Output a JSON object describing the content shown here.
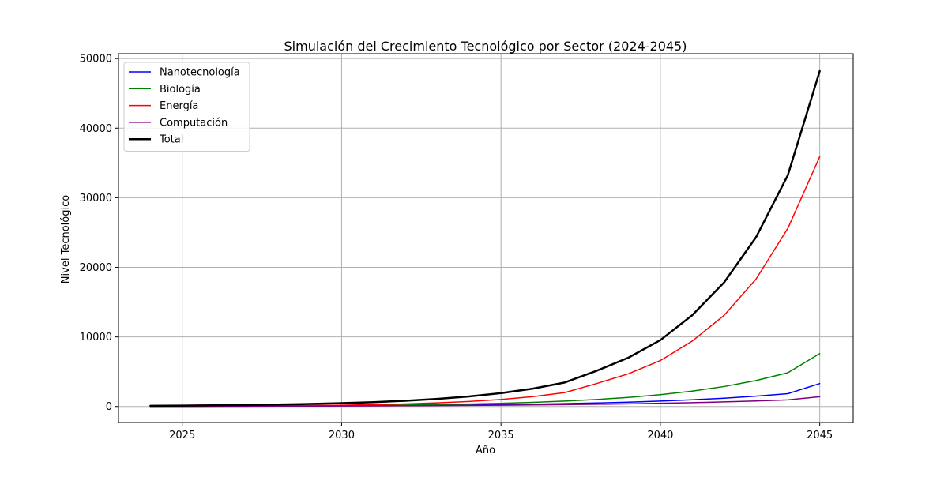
{
  "chart_data": {
    "type": "line",
    "title": "Simulación del Crecimiento Tecnológico por Sector (2024-2045)",
    "xlabel": "Año",
    "ylabel": "Nivel Tecnológico",
    "xlim": [
      2023,
      2046.05
    ],
    "ylim": [
      -2300,
      50700
    ],
    "xticks": [
      2025,
      2030,
      2035,
      2040,
      2045
    ],
    "yticks": [
      0,
      10000,
      20000,
      30000,
      40000,
      50000
    ],
    "grid": true,
    "legend_position": "top-left",
    "x": [
      2024,
      2025,
      2026,
      2027,
      2028,
      2029,
      2030,
      2031,
      2032,
      2033,
      2034,
      2035,
      2036,
      2037,
      2038,
      2039,
      2040,
      2041,
      2042,
      2043,
      2044,
      2045
    ],
    "series": [
      {
        "name": "Nanotecnología",
        "color": "#0000ff",
        "width": 1.5,
        "values": [
          25,
          31,
          38,
          47,
          59,
          73,
          91,
          112,
          139,
          173,
          214,
          266,
          329,
          408,
          506,
          628,
          778,
          965,
          1197,
          1484,
          1840,
          3300
        ]
      },
      {
        "name": "Biología",
        "color": "#008000",
        "width": 1.5,
        "values": [
          25,
          33,
          43,
          56,
          73,
          95,
          123,
          160,
          208,
          271,
          352,
          458,
          595,
          773,
          1005,
          1307,
          1699,
          2209,
          2871,
          3733,
          4853,
          7600
        ]
      },
      {
        "name": "Energía",
        "color": "#ff0000",
        "width": 1.5,
        "values": [
          25,
          35,
          49,
          69,
          96,
          134,
          188,
          264,
          369,
          517,
          723,
          1012,
          1417,
          2000,
          3300,
          4700,
          6600,
          9400,
          13100,
          18300,
          25600,
          35900
        ]
      },
      {
        "name": "Computación",
        "color": "#800080",
        "width": 1.5,
        "values": [
          25,
          30,
          36,
          43,
          52,
          62,
          74,
          89,
          107,
          128,
          154,
          185,
          222,
          266,
          319,
          383,
          460,
          552,
          662,
          795,
          954,
          1400
        ]
      },
      {
        "name": "Total",
        "color": "#000000",
        "width": 2.5,
        "values": [
          100,
          129,
          166,
          215,
          280,
          364,
          476,
          625,
          823,
          1089,
          1443,
          1921,
          2563,
          3447,
          5130,
          7018,
          9537,
          13126,
          17830,
          24312,
          33247,
          48200
        ]
      }
    ]
  }
}
